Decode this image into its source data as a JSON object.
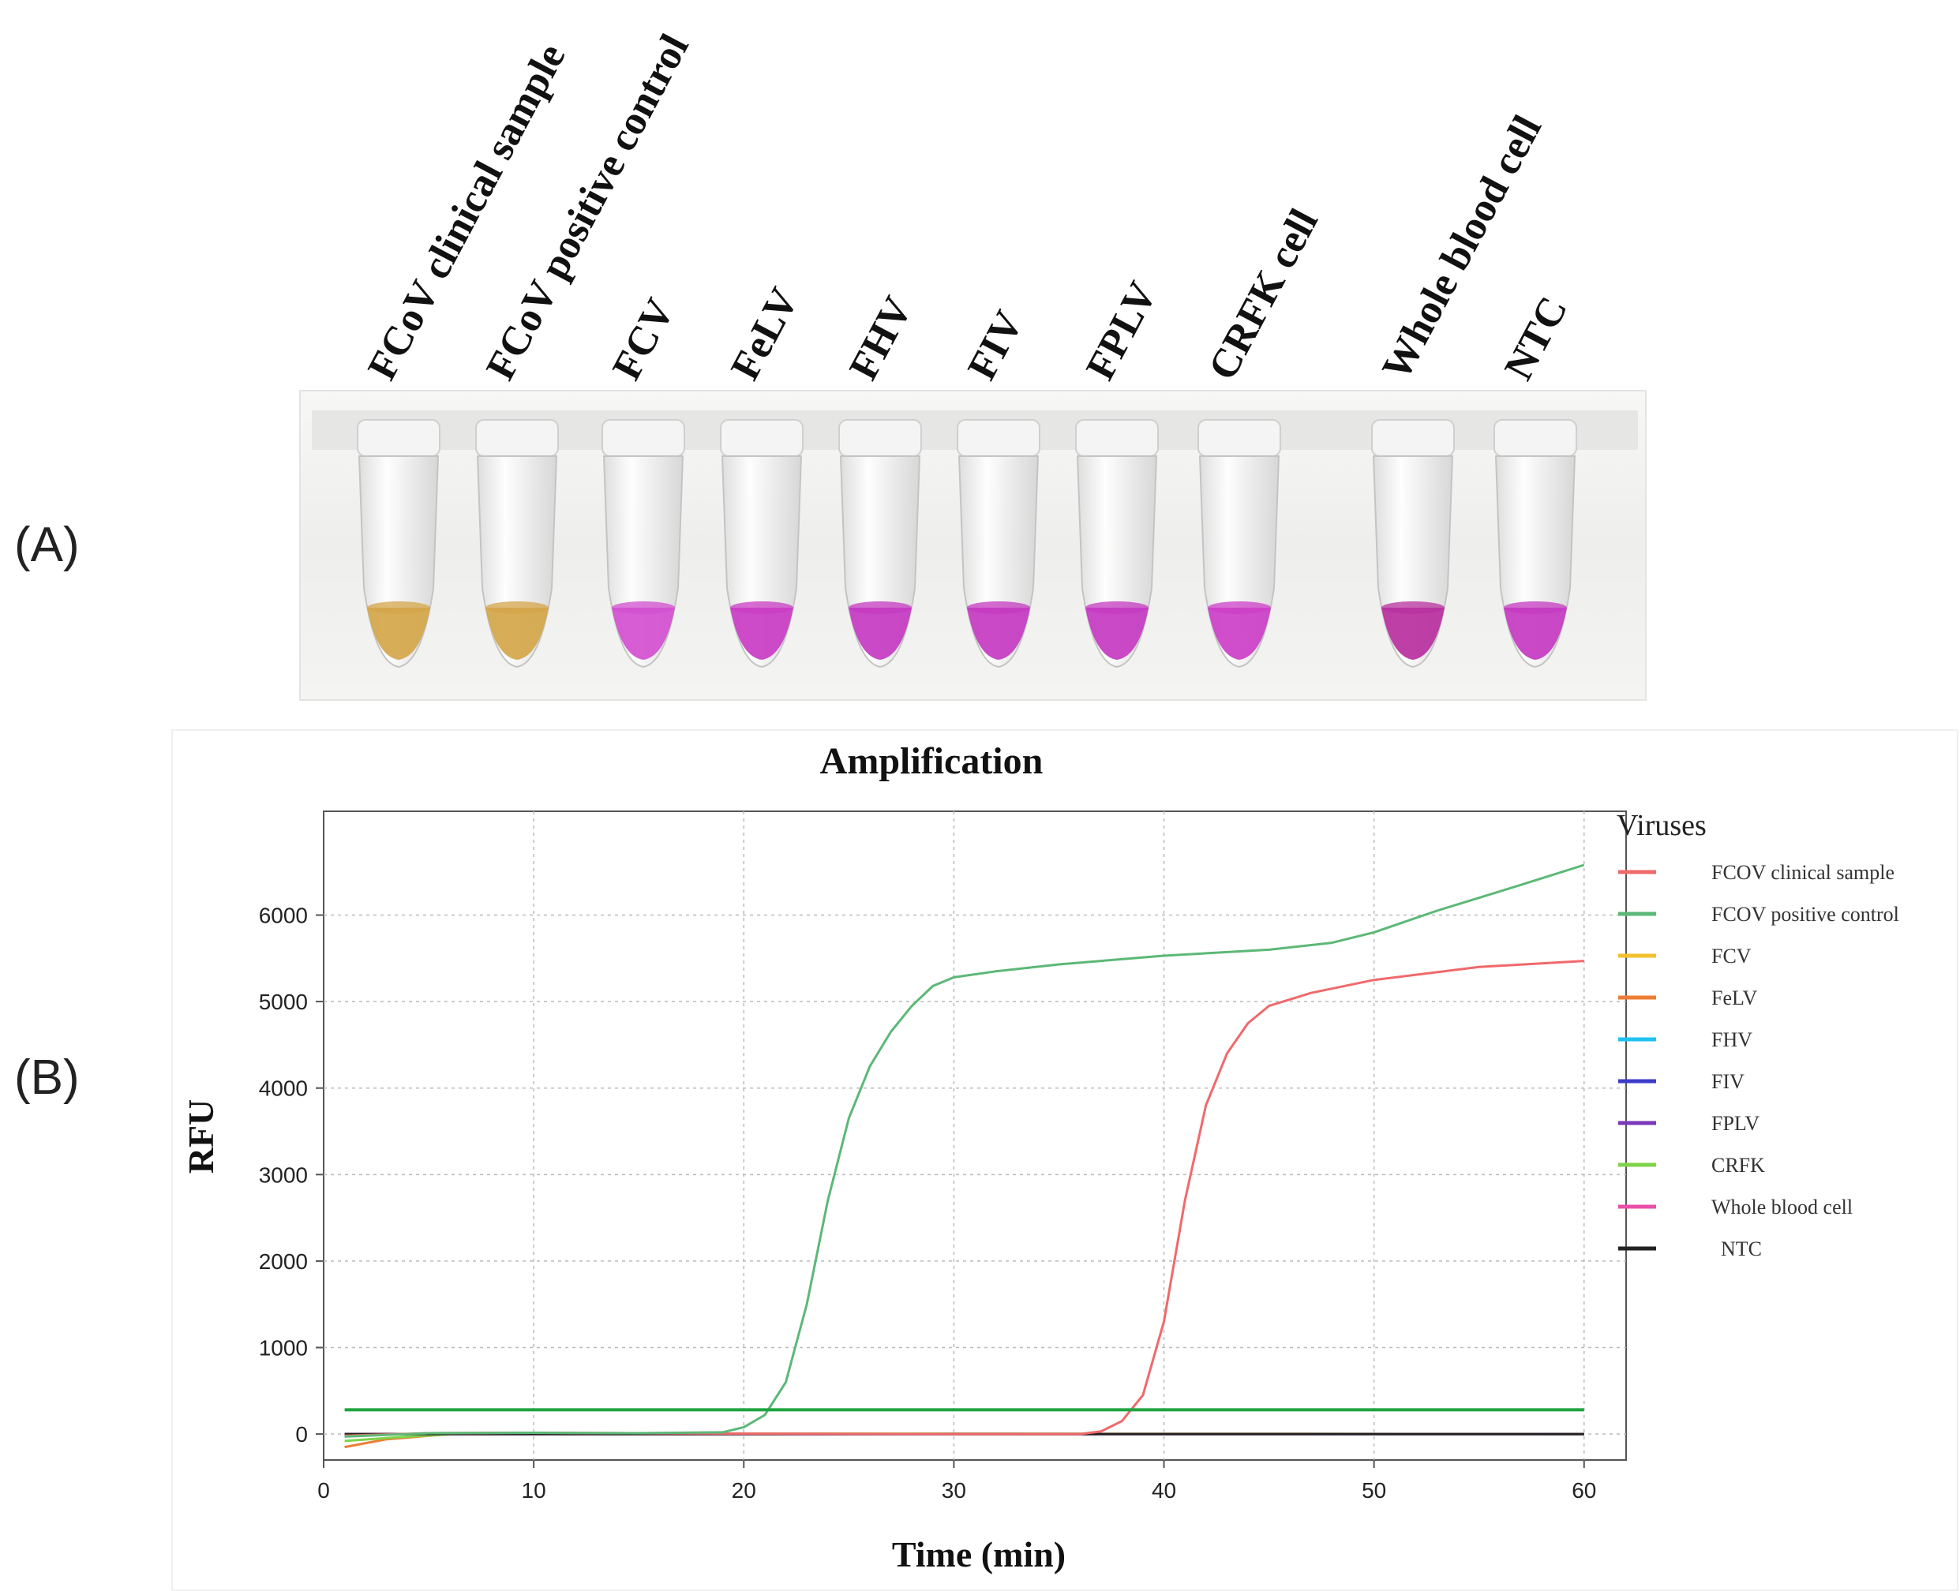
{
  "panels": {
    "a": "(A)",
    "b": "(B)"
  },
  "tubes": {
    "labels": [
      "FCoV clinical sample",
      "FCoV positive control",
      "FCV",
      "FeLV",
      "FHV",
      "FIV",
      "FPLV",
      "CRFK cell",
      "Whole blood cell",
      "NTC"
    ],
    "result_colors": [
      "#d4a64a",
      "#d4a64a",
      "#d24fd0",
      "#c93cc4",
      "#c43ac2",
      "#c43ac2",
      "#c43ac2",
      "#cc3fc8",
      "#b8309f",
      "#c43ac2"
    ]
  },
  "chart_data": {
    "type": "line",
    "title": "Amplification",
    "xlabel": "Time (min)",
    "ylabel": "RFU",
    "xlim": [
      0,
      62
    ],
    "ylim": [
      -300,
      7200
    ],
    "xticks": [
      0,
      10,
      20,
      30,
      40,
      50,
      60
    ],
    "yticks": [
      0,
      1000,
      2000,
      3000,
      4000,
      5000,
      6000
    ],
    "grid": true,
    "legend_title": "Viruses",
    "legend_position": "right",
    "series": [
      {
        "name": "FCOV clinical sample",
        "color": "#f0696b",
        "x": [
          1,
          5,
          10,
          20,
          30,
          36,
          37,
          38,
          39,
          40,
          41,
          42,
          43,
          44,
          45,
          47,
          50,
          55,
          60
        ],
        "y": [
          -20,
          10,
          15,
          5,
          0,
          0,
          30,
          150,
          450,
          1300,
          2700,
          3800,
          4400,
          4750,
          4950,
          5100,
          5250,
          5400,
          5470
        ]
      },
      {
        "name": "FCOV positive control",
        "color": "#5cb877",
        "x": [
          1,
          5,
          10,
          15,
          19,
          20,
          21,
          22,
          23,
          24,
          25,
          26,
          27,
          28,
          29,
          30,
          32,
          35,
          40,
          45,
          48,
          50,
          53,
          57,
          60
        ],
        "y": [
          -30,
          10,
          15,
          10,
          20,
          80,
          220,
          600,
          1500,
          2700,
          3650,
          4250,
          4650,
          4950,
          5180,
          5280,
          5350,
          5430,
          5530,
          5600,
          5680,
          5800,
          6050,
          6350,
          6580
        ]
      },
      {
        "name": "FCV",
        "color": "#f2c12e",
        "x": [
          1,
          60
        ],
        "y": [
          0,
          0
        ]
      },
      {
        "name": "FeLV",
        "color": "#ec7d34",
        "x": [
          1,
          3,
          6,
          10,
          20,
          60
        ],
        "y": [
          -150,
          -60,
          0,
          10,
          5,
          0
        ]
      },
      {
        "name": "FHV",
        "color": "#1ec3f0",
        "x": [
          1,
          60
        ],
        "y": [
          0,
          0
        ]
      },
      {
        "name": "FIV",
        "color": "#3c3cc8",
        "x": [
          1,
          60
        ],
        "y": [
          0,
          0
        ]
      },
      {
        "name": "FPLV",
        "color": "#7b39b8",
        "x": [
          1,
          60
        ],
        "y": [
          0,
          0
        ]
      },
      {
        "name": "CRFK",
        "color": "#7fd34a",
        "x": [
          1,
          4,
          7,
          10,
          20,
          60
        ],
        "y": [
          -80,
          -30,
          10,
          10,
          5,
          0
        ]
      },
      {
        "name": "Whole blood cell",
        "color": "#ea4fa9",
        "x": [
          1,
          60
        ],
        "y": [
          0,
          0
        ]
      },
      {
        "name": "NTC",
        "color": "#222222",
        "x": [
          1,
          60
        ],
        "y": [
          0,
          0
        ]
      }
    ],
    "threshold": {
      "y": 280,
      "color": "#1fa33f"
    }
  }
}
